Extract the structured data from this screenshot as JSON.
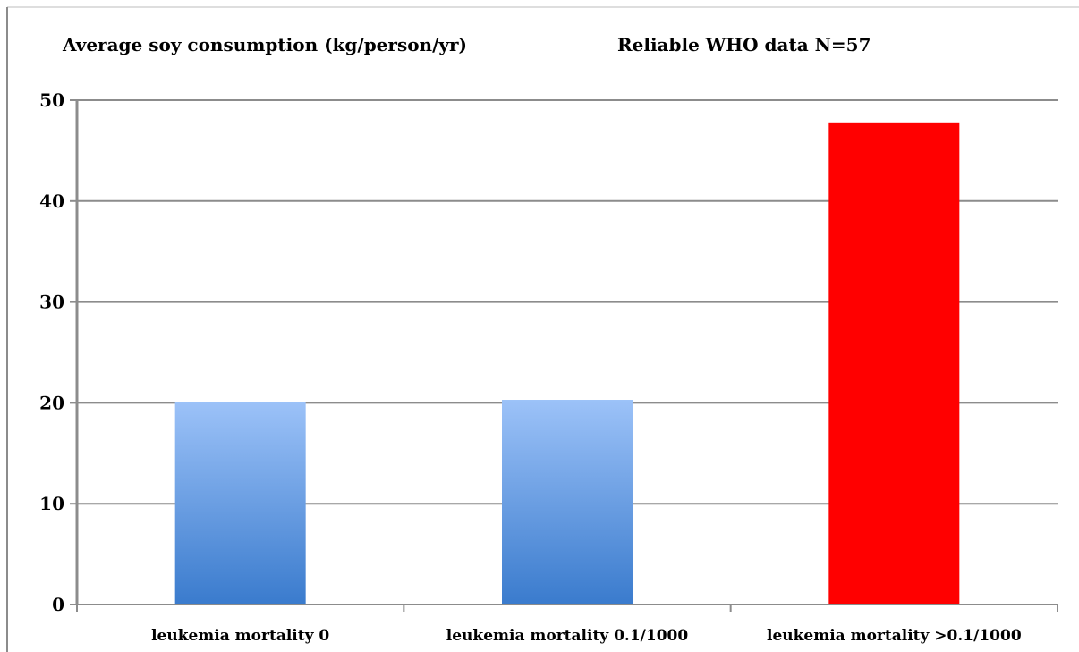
{
  "chart_data": {
    "type": "bar",
    "title": "Average soy consumption (kg/person/yr)",
    "subtitle": "Reliable WHO data N=57",
    "xlabel": "",
    "ylabel": "",
    "categories": [
      "leukemia mortality 0",
      "leukemia mortality 0.1/1000",
      "leukemia mortality >0.1/1000"
    ],
    "values": [
      20.1,
      20.3,
      47.8
    ],
    "bar_colors": [
      "#5b93df",
      "#5b93df",
      "#ff0000"
    ],
    "ylim": [
      0,
      50
    ],
    "y_ticks": [
      "0",
      "10",
      "20",
      "30",
      "40",
      "50"
    ],
    "grid": true,
    "legend": "none"
  }
}
